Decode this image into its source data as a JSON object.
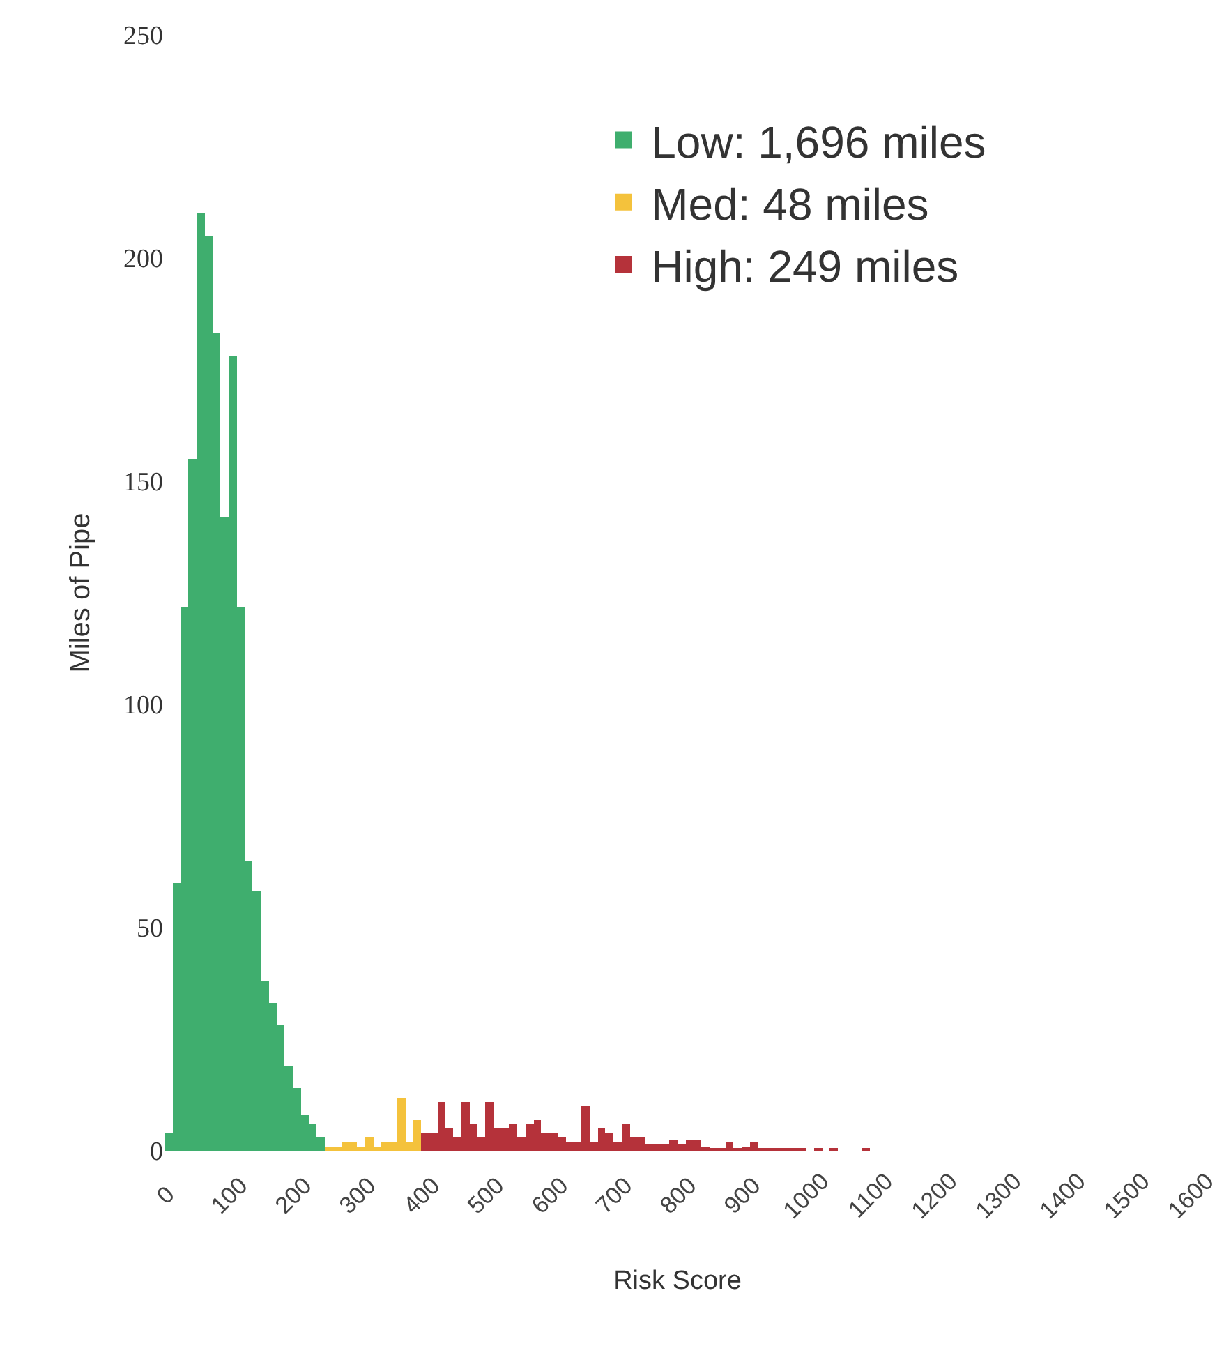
{
  "chart_data": {
    "type": "histogram",
    "xlabel": "Risk Score",
    "ylabel": "Miles of Pipe",
    "xlim": [
      0,
      1600
    ],
    "xticks": [
      0,
      100,
      200,
      300,
      400,
      500,
      600,
      700,
      800,
      900,
      1000,
      1100,
      1200,
      1300,
      1400,
      1500,
      1600
    ],
    "ylim": [
      0,
      250
    ],
    "yticks": [
      0,
      50,
      100,
      150,
      200,
      250
    ],
    "legend": "top right",
    "bins": [
      0,
      12.5,
      25,
      37.5,
      50,
      62.5,
      75,
      87.5,
      100,
      112.5,
      125,
      137.5,
      150,
      162.5,
      175,
      187.5,
      200,
      212.5,
      225,
      237.5,
      250,
      262.5,
      275,
      287.5,
      300,
      312.5,
      325,
      337.5,
      350,
      362.5,
      375,
      387.5,
      400,
      412.5,
      425,
      437.5,
      450,
      462.5,
      475,
      487.5,
      500,
      512.5,
      525,
      537.5,
      550,
      562.5,
      575,
      587.5,
      600,
      612.5,
      625,
      637.5,
      650,
      662.5,
      675,
      687.5,
      700,
      712.5,
      725,
      737.5,
      750,
      762.5,
      775,
      787.5,
      800,
      812.5,
      825,
      837.5,
      850,
      862.5,
      875,
      887.5,
      900,
      912.5,
      925,
      937.5,
      950,
      962.5,
      975,
      987.5,
      1000,
      1012.5,
      1025,
      1037.5,
      1050,
      1062.5,
      1075,
      1087.5,
      1100
    ],
    "series": [
      {
        "name": "Low: 1,696 miles",
        "color": "#3fae6e",
        "values": [
          4,
          60,
          122,
          155,
          210,
          205,
          183,
          142,
          178,
          122,
          65,
          58,
          38,
          33,
          28,
          19,
          14,
          8,
          6,
          3,
          null,
          null,
          null,
          null,
          null,
          null,
          null,
          null,
          null,
          null,
          null,
          null,
          null,
          null,
          null,
          null,
          null,
          null,
          null,
          null,
          null,
          null,
          null,
          null,
          null,
          null,
          null,
          null,
          null,
          null,
          null,
          null,
          null,
          null,
          null,
          null,
          null,
          null,
          null,
          null,
          null,
          null,
          null,
          null,
          null,
          null,
          null,
          null,
          null,
          null,
          null,
          null,
          null,
          null,
          null,
          null,
          null,
          null,
          null,
          null,
          null,
          null,
          null,
          null,
          null,
          null,
          null,
          null
        ]
      },
      {
        "name": "Med: 48 miles",
        "color": "#f4c23c",
        "values": [
          null,
          null,
          null,
          null,
          null,
          null,
          null,
          null,
          null,
          null,
          null,
          null,
          null,
          null,
          null,
          null,
          null,
          null,
          null,
          null,
          1,
          1,
          2,
          2,
          1,
          3,
          1,
          2,
          2,
          12,
          2,
          7,
          null,
          null,
          null,
          null,
          null,
          null,
          null,
          null,
          null,
          null,
          null,
          null,
          null,
          null,
          null,
          null,
          null,
          null,
          null,
          null,
          null,
          null,
          null,
          null,
          null,
          null,
          null,
          null,
          null,
          null,
          null,
          null,
          null,
          null,
          null,
          null,
          null,
          null,
          null,
          null,
          null,
          null,
          null,
          null,
          null,
          null,
          null,
          null,
          null,
          null,
          null,
          null,
          null,
          null,
          null,
          null
        ]
      },
      {
        "name": "High: 249 miles",
        "color": "#b5323a",
        "values": [
          null,
          null,
          null,
          null,
          null,
          null,
          null,
          null,
          null,
          null,
          null,
          null,
          null,
          null,
          null,
          null,
          null,
          null,
          null,
          null,
          null,
          null,
          null,
          null,
          null,
          null,
          null,
          null,
          null,
          null,
          null,
          null,
          4,
          4,
          11,
          5,
          3,
          11,
          6,
          3,
          11,
          5,
          5,
          6,
          3,
          6,
          7,
          4,
          4,
          3,
          2,
          2,
          10,
          2,
          5,
          4,
          2,
          6,
          3,
          3,
          1.5,
          1.5,
          1.5,
          2.5,
          1.5,
          2.5,
          2.5,
          1,
          0.5,
          0.5,
          2,
          0.5,
          1,
          2,
          0.5,
          0.5,
          0.5,
          0.5,
          0.5,
          0.5,
          null,
          0.5,
          null,
          0.5,
          null,
          null,
          null,
          0.5
        ]
      }
    ]
  }
}
